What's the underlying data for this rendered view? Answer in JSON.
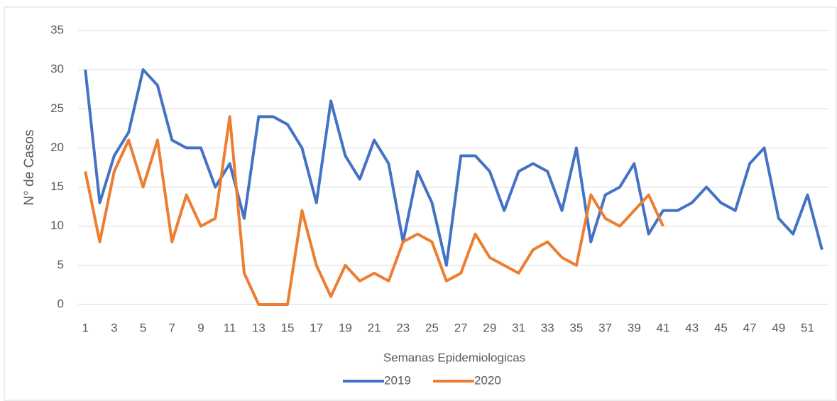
{
  "chart_data": {
    "type": "line",
    "x_label": "Semanas Epidemiologicas",
    "y_label": "N° de Casos",
    "x": [
      1,
      2,
      3,
      4,
      5,
      6,
      7,
      8,
      9,
      10,
      11,
      12,
      13,
      14,
      15,
      16,
      17,
      18,
      19,
      20,
      21,
      22,
      23,
      24,
      25,
      26,
      27,
      28,
      29,
      30,
      31,
      32,
      33,
      34,
      35,
      36,
      37,
      38,
      39,
      40,
      41,
      42,
      43,
      44,
      45,
      46,
      47,
      48,
      49,
      50,
      51,
      52
    ],
    "xlim": [
      0.5,
      52.5
    ],
    "xticks": [
      1,
      3,
      5,
      7,
      9,
      11,
      13,
      15,
      17,
      19,
      21,
      23,
      25,
      27,
      29,
      31,
      33,
      35,
      37,
      39,
      41,
      43,
      45,
      47,
      49,
      51
    ],
    "ylim": [
      0,
      35
    ],
    "yticks": [
      0,
      5,
      10,
      15,
      20,
      25,
      30,
      35
    ],
    "grid": true,
    "legend": "bottom",
    "series": [
      {
        "name": "2019",
        "color": "#4472c4",
        "values": [
          30,
          13,
          19,
          22,
          30,
          28,
          21,
          20,
          20,
          15,
          18,
          11,
          24,
          24,
          23,
          20,
          13,
          26,
          19,
          16,
          21,
          18,
          8,
          17,
          13,
          5,
          19,
          19,
          17,
          12,
          17,
          18,
          17,
          12,
          20,
          8,
          14,
          15,
          18,
          9,
          12,
          12,
          13,
          15,
          13,
          12,
          18,
          20,
          11,
          9,
          14,
          7
        ]
      },
      {
        "name": "2020",
        "color": "#ed7d31",
        "values": [
          17,
          8,
          17,
          21,
          15,
          21,
          8,
          14,
          10,
          11,
          24,
          4,
          0,
          0,
          0,
          12,
          5,
          1,
          5,
          3,
          4,
          3,
          8,
          9,
          8,
          3,
          4,
          9,
          6,
          5,
          4,
          7,
          8,
          6,
          5,
          14,
          11,
          10,
          12,
          14,
          10,
          null,
          null,
          null,
          null,
          null,
          null,
          null,
          null,
          null,
          null,
          null
        ]
      }
    ]
  }
}
